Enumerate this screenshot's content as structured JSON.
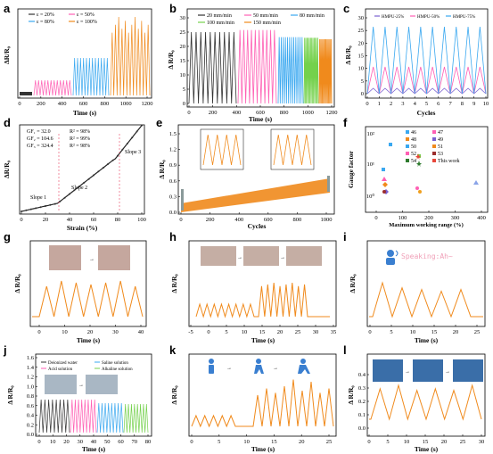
{
  "panels": {
    "a": {
      "label": "a",
      "xlabel": "Time (s)",
      "ylabel": "ΔR/R₀",
      "xticks": [
        "0",
        "200",
        "400",
        "600",
        "800",
        "1000",
        "1200"
      ],
      "legend": [
        "ε = 20%",
        "ε = 50%",
        "ε = 80%",
        "ε = 100%"
      ]
    },
    "b": {
      "label": "b",
      "xlabel": "Time (s)",
      "ylabel": "Δ R/R₀",
      "xticks": [
        "0",
        "200",
        "400",
        "600",
        "800",
        "1000",
        "1200"
      ],
      "yticks": [
        "0",
        "5",
        "10",
        "15",
        "20",
        "25",
        "30"
      ],
      "legend": [
        "20 mm/min",
        "50 mm/min",
        "80 mm/min",
        "100 mm/min",
        "150 mm/min"
      ]
    },
    "c": {
      "label": "c",
      "xlabel": "Cycles",
      "ylabel": "Δ R/R₀",
      "xticks": [
        "0",
        "1",
        "2",
        "3",
        "4",
        "5",
        "6",
        "7",
        "8",
        "9",
        "10"
      ],
      "yticks": [
        "0",
        "5",
        "10",
        "15",
        "20",
        "25",
        "30"
      ],
      "legend": [
        "HMPU-25%",
        "HMPU-50%",
        "HMPU-75%"
      ]
    },
    "d": {
      "label": "d",
      "xlabel": "Strain (%)",
      "ylabel": "ΔR/R₀",
      "xticks": [
        "0",
        "20",
        "40",
        "60",
        "80",
        "100"
      ],
      "gf": [
        "GF₁ = 32.0",
        "GF₂ = 104.6",
        "GF₃ = 324.4"
      ],
      "r2": [
        "R² = 98%",
        "R² = 99%",
        "R² = 98%"
      ],
      "slopes": [
        "Slope 1",
        "Slope 2",
        "Slope 3"
      ]
    },
    "e": {
      "label": "e",
      "xlabel": "Cycles",
      "ylabel": "Δ R/R₀",
      "xticks": [
        "0",
        "200",
        "400",
        "600",
        "800",
        "1000"
      ],
      "yticks": [
        "0.0",
        "0.3",
        "0.6",
        "0.9",
        "1.2",
        "1.5"
      ]
    },
    "f": {
      "label": "f",
      "xlabel": "Maximum working range (%)",
      "ylabel": "Gauge factor",
      "xticks": [
        "0",
        "100",
        "200",
        "300",
        "400"
      ],
      "yticks": [
        "10⁰",
        "10¹",
        "10²"
      ],
      "legend": [
        "46",
        "47",
        "48",
        "49",
        "50",
        "51",
        "52",
        "53",
        "54",
        "This work"
      ]
    },
    "g": {
      "label": "g",
      "xlabel": "Time (s)",
      "ylabel": "Δ R/R₀",
      "xticks": [
        "0",
        "10",
        "20",
        "30",
        "40"
      ]
    },
    "h": {
      "label": "h",
      "xlabel": "Time (s)",
      "ylabel": "Δ R/R₀",
      "xticks": [
        "-5",
        "0",
        "5",
        "10",
        "15",
        "20",
        "25",
        "30",
        "35"
      ]
    },
    "i": {
      "label": "i",
      "xlabel": "Time (s)",
      "ylabel": "Δ R/R₀",
      "xticks": [
        "0",
        "5",
        "10",
        "15",
        "20",
        "25"
      ],
      "speech": "Speaking:Ah~"
    },
    "j": {
      "label": "j",
      "xlabel": "Time (s)",
      "ylabel": "Δ R/R₀",
      "xticks": [
        "0",
        "10",
        "20",
        "30",
        "40",
        "50",
        "60",
        "70",
        "80"
      ],
      "legend": [
        "Deionized water",
        "Saline solution",
        "Acid solution",
        "Alkaline solution"
      ],
      "yticks": [
        "0.0",
        "0.2",
        "0.4",
        "0.6",
        "0.8",
        "1.0",
        "1.2",
        "1.4",
        "1.6"
      ]
    },
    "k": {
      "label": "k",
      "xlabel": "Time (s)",
      "ylabel": "Δ R/R₀",
      "xticks": [
        "0",
        "5",
        "10",
        "15",
        "20",
        "25"
      ]
    },
    "l": {
      "label": "l",
      "xlabel": "Time (s)",
      "ylabel": "Δ R/R₀",
      "xticks": [
        "0",
        "5",
        "10",
        "15",
        "20",
        "25",
        "30"
      ],
      "yticks": [
        "0.0",
        "0.1",
        "0.2",
        "0.3",
        "0.4"
      ]
    }
  },
  "colors": {
    "black": "#333333",
    "pink": "#ff5fb4",
    "blue": "#3aa8f0",
    "green": "#74d14c",
    "orange": "#f08a1c",
    "purple": "#7a60d0",
    "red": "#e8463a"
  }
}
